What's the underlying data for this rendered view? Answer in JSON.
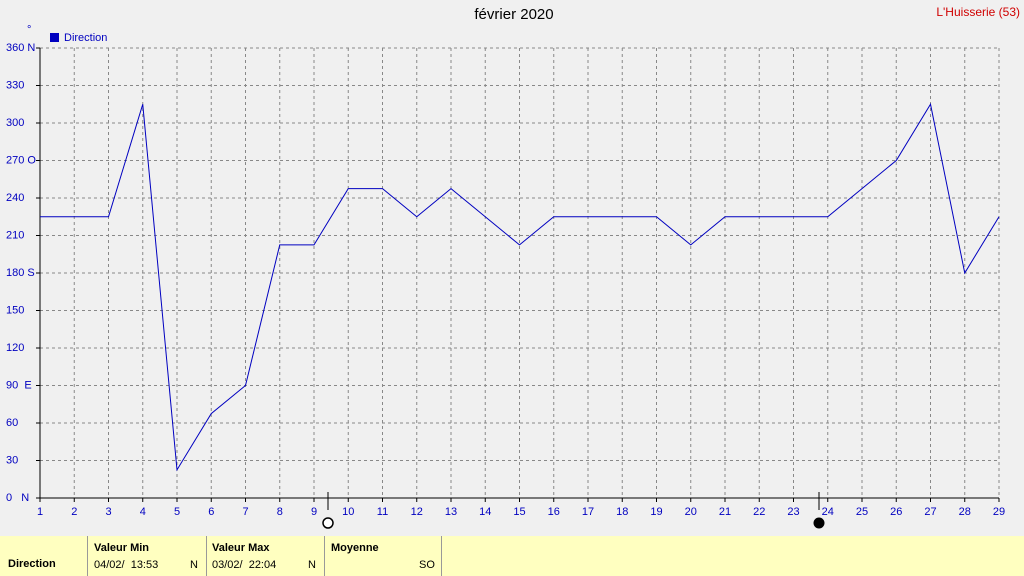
{
  "chart_data": {
    "type": "line",
    "title": "février 2020",
    "station": "L'Huisserie (53)",
    "y_unit": "°",
    "x": [
      1,
      2,
      3,
      4,
      5,
      6,
      7,
      8,
      9,
      10,
      11,
      12,
      13,
      14,
      15,
      16,
      17,
      18,
      19,
      20,
      21,
      22,
      23,
      24,
      25,
      26,
      27,
      28,
      29
    ],
    "xlim": [
      1,
      29
    ],
    "xticks": [
      1,
      2,
      3,
      4,
      5,
      6,
      7,
      8,
      9,
      10,
      11,
      12,
      13,
      14,
      15,
      16,
      17,
      18,
      19,
      20,
      21,
      22,
      23,
      24,
      25,
      26,
      27,
      28,
      29
    ],
    "ylim": [
      0,
      360
    ],
    "yticks": [
      {
        "value": 0,
        "label": "0   N"
      },
      30,
      60,
      {
        "value": 90,
        "label": "90  E"
      },
      120,
      150,
      {
        "value": 180,
        "label": "180 S"
      },
      210,
      240,
      {
        "value": 270,
        "label": "270 O"
      },
      300,
      330,
      {
        "value": 360,
        "label": "360 N"
      }
    ],
    "grid": true,
    "series": [
      {
        "name": "Direction",
        "color": "#0000c0",
        "values": [
          225,
          225,
          225,
          315,
          22.5,
          67.5,
          90,
          202.5,
          202.5,
          247.5,
          247.5,
          225,
          247.5,
          225,
          202.5,
          225,
          225,
          225,
          225,
          202.5,
          225,
          225,
          225,
          225,
          247.5,
          270,
          315,
          180,
          225
        ]
      }
    ]
  },
  "table": {
    "row_label": "Direction",
    "columns": [
      {
        "header": "Valeur Min",
        "date": "04/02/  13:53",
        "value": "N"
      },
      {
        "header": "Valeur Max",
        "date": "03/02/  22:04",
        "value": "N"
      },
      {
        "header": "Moyenne",
        "value": "SO"
      }
    ]
  }
}
